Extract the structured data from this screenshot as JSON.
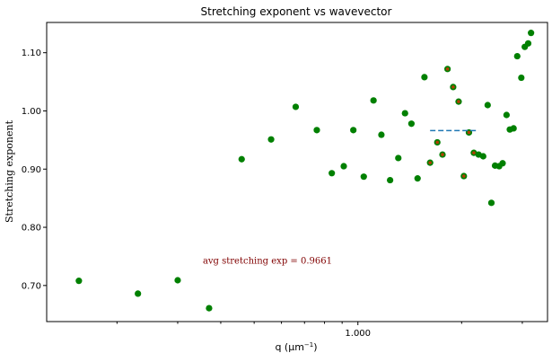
{
  "chart_data": {
    "type": "scatter",
    "title": "Stretching exponent vs wavevector",
    "xlabel": "q (μm",
    "xlabel_sup": "−1",
    "xlabel_tail": ")",
    "ylabel": "Stretching exponent",
    "xscale": "log",
    "xlim": [
      0.125,
      3.55
    ],
    "ylim": [
      0.638,
      1.152
    ],
    "xticks": [
      {
        "value": 1.0,
        "label": "1.000"
      }
    ],
    "yticks": [
      {
        "value": 0.7,
        "label": "0.70"
      },
      {
        "value": 0.8,
        "label": "0.80"
      },
      {
        "value": 0.9,
        "label": "0.90"
      },
      {
        "value": 1.0,
        "label": "1.00"
      },
      {
        "value": 1.1,
        "label": "1.10"
      }
    ],
    "grid": false,
    "colors": {
      "points": "#008000",
      "average_line": "#1f77b4",
      "annotation": "#800000",
      "overlay_point": "#b04000"
    },
    "series": [
      {
        "x": [
          0.155,
          0.23,
          0.3,
          0.37,
          0.46,
          0.56,
          0.66,
          0.76,
          0.84,
          0.91,
          0.97,
          1.04,
          1.11,
          1.17,
          1.24,
          1.31,
          1.37,
          1.43,
          1.49,
          1.56,
          1.62,
          1.7,
          1.76,
          1.82,
          1.89,
          1.96,
          2.03,
          2.1,
          2.17,
          2.24,
          2.31,
          2.38,
          2.44,
          2.5,
          2.57,
          2.63,
          2.7,
          2.76,
          2.83,
          2.9,
          2.98,
          3.05,
          3.12,
          3.18
        ],
        "y": [
          0.708,
          0.686,
          0.709,
          0.661,
          0.917,
          0.951,
          1.007,
          0.967,
          0.893,
          0.905,
          0.967,
          0.887,
          1.018,
          0.959,
          0.881,
          0.919,
          0.996,
          0.978,
          0.884,
          1.058,
          0.911,
          0.946,
          0.925,
          1.072,
          1.041,
          1.016,
          0.888,
          0.963,
          0.928,
          0.925,
          0.922,
          1.01,
          0.842,
          0.906,
          0.905,
          0.91,
          0.993,
          0.968,
          0.97,
          1.094,
          1.057,
          1.11,
          1.116,
          1.134
        ]
      }
    ],
    "overlay_points": {
      "x": [
        1.62,
        1.7,
        1.76,
        1.82,
        1.89,
        1.96,
        2.03,
        2.1,
        2.17
      ]
    },
    "average_line": {
      "y": 0.9661,
      "x_range": [
        1.62,
        2.24
      ]
    },
    "annotation": {
      "text": "avg stretching exp = 0.9661",
      "x": 0.37,
      "y": 0.742
    }
  }
}
